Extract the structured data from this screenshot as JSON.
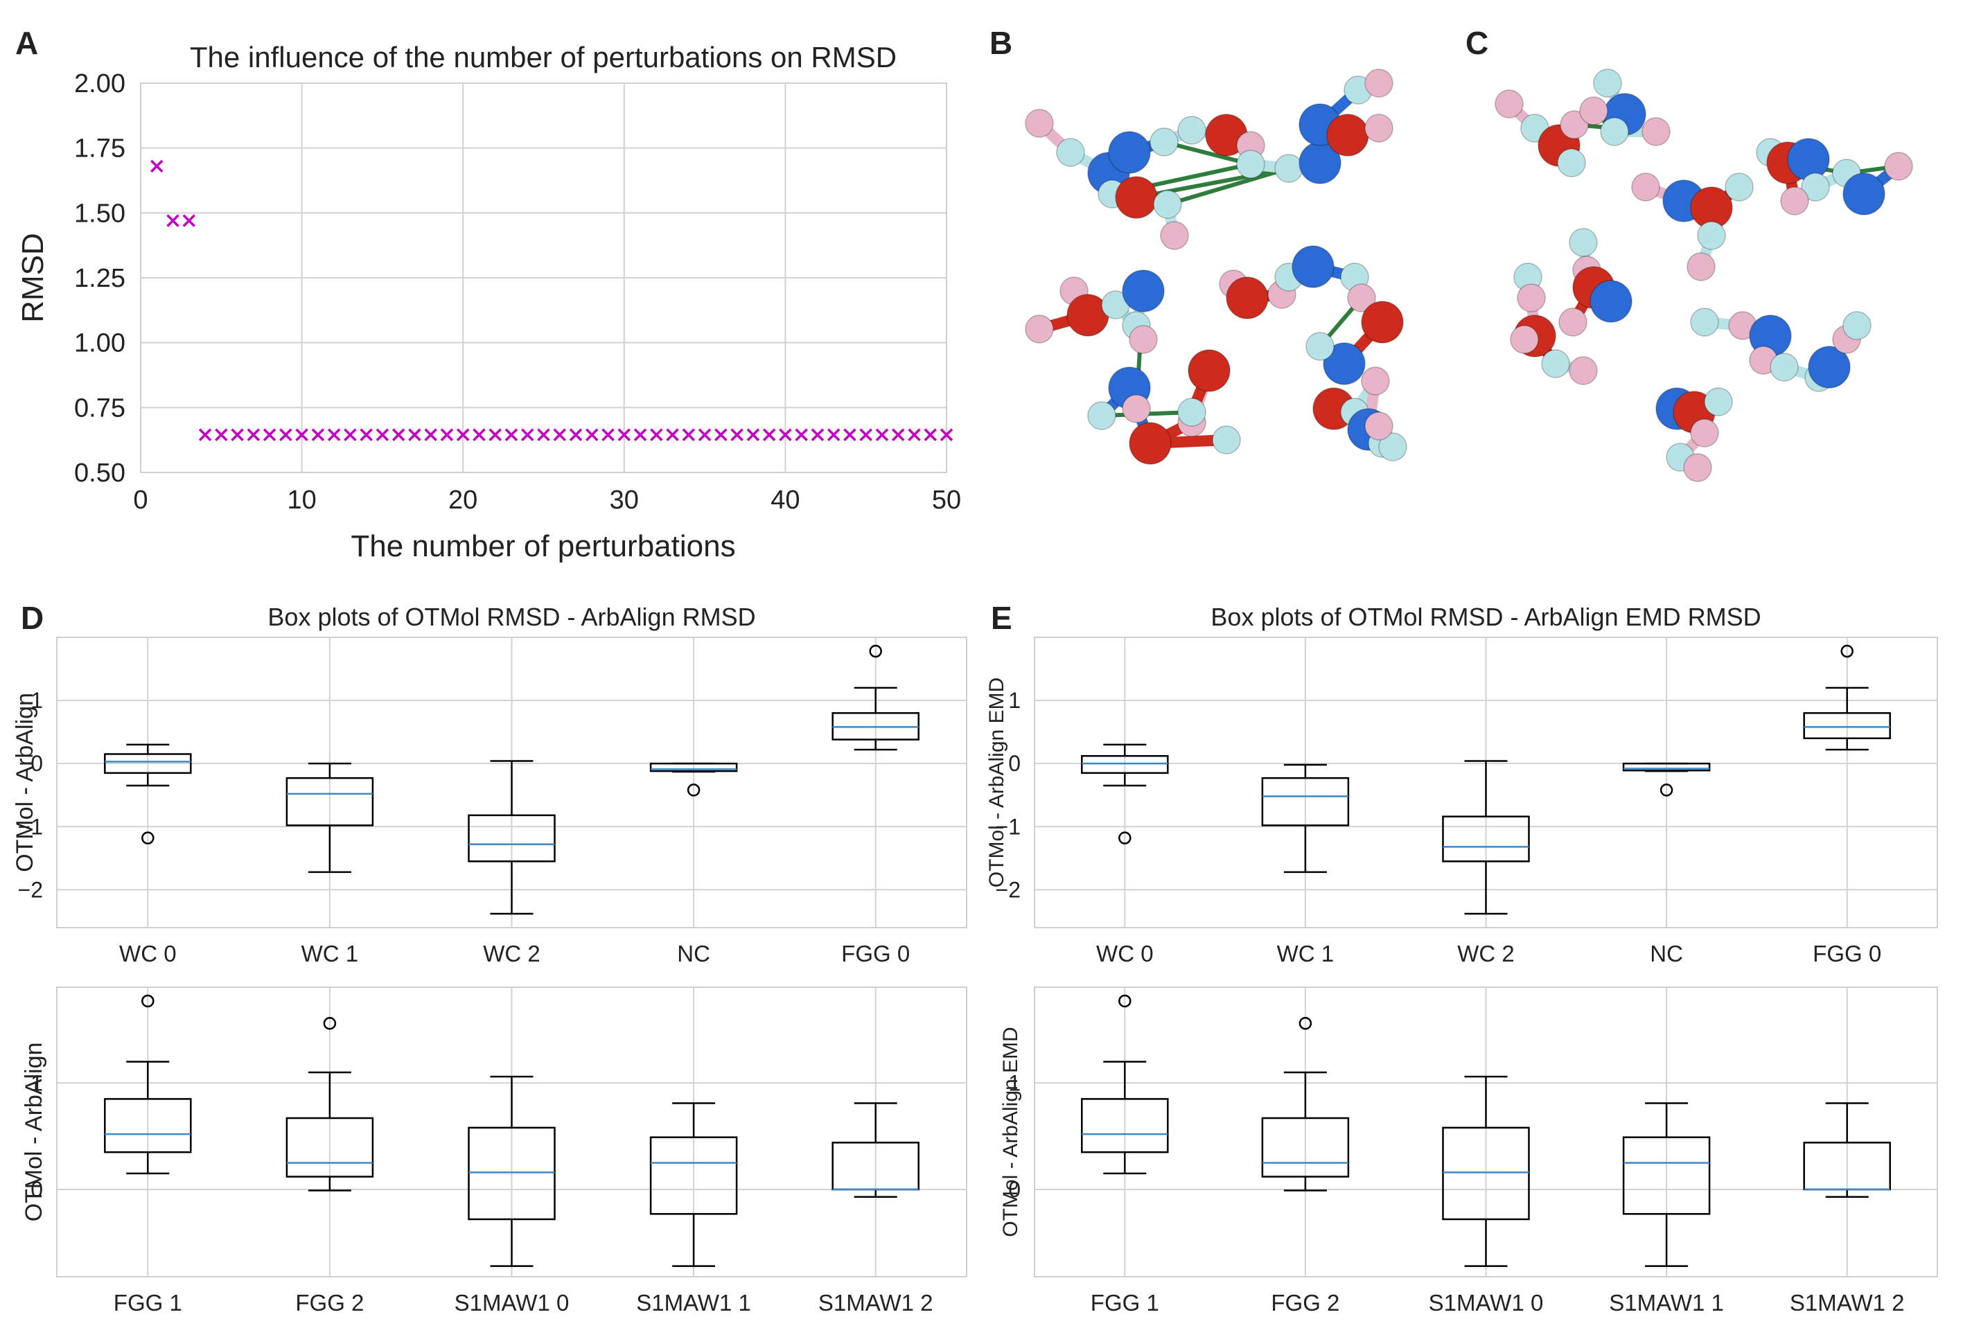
{
  "panels": {
    "A": {
      "letter": "A"
    },
    "B": {
      "letter": "B"
    },
    "C": {
      "letter": "C"
    },
    "D": {
      "letter": "D"
    },
    "E": {
      "letter": "E"
    }
  },
  "colors": {
    "scatter": "#c400c4",
    "median": "#3f86c6",
    "grid": "#d2d2d2",
    "atom_red": "#cc2b1e",
    "atom_blue": "#2a6bd6",
    "atom_pink": "#e8b4c8",
    "atom_cyan": "#b8e3e6",
    "bond_green": "#2f7d3d"
  },
  "chart_data": [
    {
      "id": "A",
      "type": "scatter",
      "title": "The influence of the number of perturbations on RMSD",
      "xlabel": "The number of perturbations",
      "ylabel": "RMSD",
      "xlim": [
        0,
        50
      ],
      "ylim": [
        0.5,
        2.0
      ],
      "xticks": [
        0,
        10,
        20,
        30,
        40,
        50
      ],
      "xtick_labels": [
        "0",
        "10",
        "20",
        "30",
        "40",
        "50"
      ],
      "yticks": [
        0.5,
        0.75,
        1.0,
        1.25,
        1.5,
        1.75,
        2.0
      ],
      "ytick_labels": [
        "0.50",
        "0.75",
        "1.00",
        "1.25",
        "1.50",
        "1.75",
        "2.00"
      ],
      "marker": "x",
      "points": [
        [
          1,
          1.68
        ],
        [
          2,
          1.47
        ],
        [
          3,
          1.47
        ],
        [
          4,
          0.645
        ],
        [
          5,
          0.645
        ],
        [
          6,
          0.645
        ],
        [
          7,
          0.645
        ],
        [
          8,
          0.645
        ],
        [
          9,
          0.645
        ],
        [
          10,
          0.645
        ],
        [
          11,
          0.645
        ],
        [
          12,
          0.645
        ],
        [
          13,
          0.645
        ],
        [
          14,
          0.645
        ],
        [
          15,
          0.645
        ],
        [
          16,
          0.645
        ],
        [
          17,
          0.645
        ],
        [
          18,
          0.645
        ],
        [
          19,
          0.645
        ],
        [
          20,
          0.645
        ],
        [
          21,
          0.645
        ],
        [
          22,
          0.645
        ],
        [
          23,
          0.645
        ],
        [
          24,
          0.645
        ],
        [
          25,
          0.645
        ],
        [
          26,
          0.645
        ],
        [
          27,
          0.645
        ],
        [
          28,
          0.645
        ],
        [
          29,
          0.645
        ],
        [
          30,
          0.645
        ],
        [
          31,
          0.645
        ],
        [
          32,
          0.645
        ],
        [
          33,
          0.645
        ],
        [
          34,
          0.645
        ],
        [
          35,
          0.645
        ],
        [
          36,
          0.645
        ],
        [
          37,
          0.645
        ],
        [
          38,
          0.645
        ],
        [
          39,
          0.645
        ],
        [
          40,
          0.645
        ],
        [
          41,
          0.645
        ],
        [
          42,
          0.645
        ],
        [
          43,
          0.645
        ],
        [
          44,
          0.645
        ],
        [
          45,
          0.645
        ],
        [
          46,
          0.645
        ],
        [
          47,
          0.645
        ],
        [
          48,
          0.645
        ],
        [
          49,
          0.645
        ],
        [
          50,
          0.645
        ]
      ]
    },
    {
      "id": "D-top",
      "type": "box",
      "title": "Box plots of OTMol RMSD - ArbAlign RMSD",
      "ylabel": "OTMol - ArbAlign",
      "ylim": [
        -2.6,
        2.0
      ],
      "yticks": [
        -2,
        -1,
        0,
        1
      ],
      "ytick_labels": [
        "−2",
        "−1",
        "0",
        "1"
      ],
      "categories": [
        "WC 0",
        "WC 1",
        "WC 2",
        "NC",
        "FGG 0"
      ],
      "boxes": [
        {
          "whislo": -0.35,
          "q1": -0.15,
          "med": 0.03,
          "q3": 0.15,
          "whishi": 0.3,
          "fliers": [
            -1.18
          ]
        },
        {
          "whislo": -1.72,
          "q1": -0.98,
          "med": -0.48,
          "q3": -0.23,
          "whishi": 0.0,
          "fliers": []
        },
        {
          "whislo": -2.38,
          "q1": -1.55,
          "med": -1.28,
          "q3": -0.82,
          "whishi": 0.04,
          "fliers": []
        },
        {
          "whislo": -0.13,
          "q1": -0.12,
          "med": -0.09,
          "q3": 0.0,
          "whishi": 0.0,
          "fliers": [
            -0.42
          ]
        },
        {
          "whislo": 0.22,
          "q1": 0.38,
          "med": 0.58,
          "q3": 0.8,
          "whishi": 1.2,
          "fliers": [
            1.78
          ]
        }
      ]
    },
    {
      "id": "D-bottom",
      "type": "box",
      "title": "",
      "ylabel": "OTMol - ArbAlign",
      "ylim": [
        -0.82,
        1.9
      ],
      "yticks": [
        0,
        1
      ],
      "ytick_labels": [
        "0",
        "1"
      ],
      "categories": [
        "FGG 1",
        "FGG 2",
        "S1MAW1 0",
        "S1MAW1 1",
        "S1MAW1 2"
      ],
      "boxes": [
        {
          "whislo": 0.15,
          "q1": 0.35,
          "med": 0.52,
          "q3": 0.85,
          "whishi": 1.2,
          "fliers": [
            1.77
          ]
        },
        {
          "whislo": -0.01,
          "q1": 0.12,
          "med": 0.25,
          "q3": 0.67,
          "whishi": 1.1,
          "fliers": [
            1.56
          ]
        },
        {
          "whislo": -0.72,
          "q1": -0.28,
          "med": 0.16,
          "q3": 0.58,
          "whishi": 1.06,
          "fliers": []
        },
        {
          "whislo": -0.72,
          "q1": -0.23,
          "med": 0.25,
          "q3": 0.49,
          "whishi": 0.81,
          "fliers": []
        },
        {
          "whislo": -0.07,
          "q1": 0.0,
          "med": 0.0,
          "q3": 0.44,
          "whishi": 0.81,
          "fliers": []
        }
      ]
    },
    {
      "id": "E-top",
      "type": "box",
      "title": "Box plots of OTMol RMSD - ArbAlign EMD RMSD",
      "ylabel": "OTMol - ArbAlign EMD",
      "ylim": [
        -2.6,
        2.0
      ],
      "yticks": [
        -2,
        -1,
        0,
        1
      ],
      "ytick_labels": [
        "−2",
        "−1",
        "0",
        "1"
      ],
      "categories": [
        "WC 0",
        "WC 1",
        "WC 2",
        "NC",
        "FGG 0"
      ],
      "boxes": [
        {
          "whislo": -0.35,
          "q1": -0.15,
          "med": 0.0,
          "q3": 0.12,
          "whishi": 0.3,
          "fliers": [
            -1.18
          ]
        },
        {
          "whislo": -1.72,
          "q1": -0.98,
          "med": -0.52,
          "q3": -0.23,
          "whishi": -0.02,
          "fliers": []
        },
        {
          "whislo": -2.38,
          "q1": -1.55,
          "med": -1.32,
          "q3": -0.84,
          "whishi": 0.04,
          "fliers": []
        },
        {
          "whislo": -0.12,
          "q1": -0.11,
          "med": -0.08,
          "q3": 0.0,
          "whishi": 0.0,
          "fliers": [
            -0.42
          ]
        },
        {
          "whislo": 0.22,
          "q1": 0.4,
          "med": 0.58,
          "q3": 0.8,
          "whishi": 1.2,
          "fliers": [
            1.78
          ]
        }
      ]
    },
    {
      "id": "E-bottom",
      "type": "box",
      "title": "",
      "ylabel": "OTMol - ArbAlign EMD",
      "ylim": [
        -0.82,
        1.9
      ],
      "yticks": [
        0,
        1
      ],
      "ytick_labels": [
        "0",
        "1"
      ],
      "categories": [
        "FGG 1",
        "FGG 2",
        "S1MAW1 0",
        "S1MAW1 1",
        "S1MAW1 2"
      ],
      "boxes": [
        {
          "whislo": 0.15,
          "q1": 0.35,
          "med": 0.52,
          "q3": 0.85,
          "whishi": 1.2,
          "fliers": [
            1.77
          ]
        },
        {
          "whislo": -0.01,
          "q1": 0.12,
          "med": 0.25,
          "q3": 0.67,
          "whishi": 1.1,
          "fliers": [
            1.56
          ]
        },
        {
          "whislo": -0.72,
          "q1": -0.28,
          "med": 0.16,
          "q3": 0.58,
          "whishi": 1.06,
          "fliers": []
        },
        {
          "whislo": -0.72,
          "q1": -0.23,
          "med": 0.25,
          "q3": 0.49,
          "whishi": 0.81,
          "fliers": []
        },
        {
          "whislo": -0.07,
          "q1": 0.0,
          "med": 0.0,
          "q3": 0.44,
          "whishi": 0.81,
          "fliers": []
        }
      ]
    }
  ]
}
